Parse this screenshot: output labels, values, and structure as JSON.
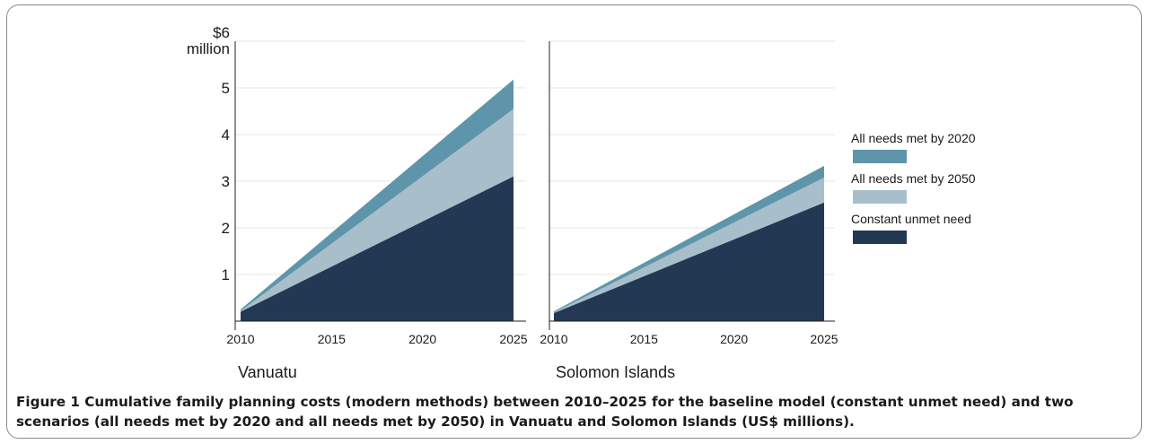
{
  "chart_data": [
    {
      "type": "area",
      "stacked": true,
      "panel_label": "Vanuatu",
      "x": [
        2010,
        2025
      ],
      "x_ticks": [
        2010,
        2015,
        2020,
        2025
      ],
      "x_tick_labels": [
        "2010",
        "2015",
        "2020",
        "2025"
      ],
      "y_ticks": [
        1,
        2,
        3,
        4,
        5,
        6
      ],
      "y_tick_labels": [
        "1",
        "2",
        "3",
        "4",
        "5",
        "$6"
      ],
      "y_unit_label": "million",
      "ylim": [
        0,
        6
      ],
      "series": [
        {
          "name": "Constant unmet need",
          "values": [
            0.2,
            3.1
          ]
        },
        {
          "name": "All needs met by 2050",
          "values": [
            0.22,
            4.55
          ]
        },
        {
          "name": "All needs met by 2020",
          "values": [
            0.25,
            5.18
          ]
        }
      ]
    },
    {
      "type": "area",
      "stacked": true,
      "panel_label": "Solomon Islands",
      "x": [
        2010,
        2025
      ],
      "x_ticks": [
        2010,
        2015,
        2020,
        2025
      ],
      "x_tick_labels": [
        "2010",
        "2015",
        "2020",
        "2025"
      ],
      "ylim": [
        0,
        6
      ],
      "series": [
        {
          "name": "Constant unmet need",
          "values": [
            0.17,
            2.54
          ]
        },
        {
          "name": "All needs met by 2050",
          "values": [
            0.19,
            3.08
          ]
        },
        {
          "name": "All needs met by 2020",
          "values": [
            0.21,
            3.33
          ]
        }
      ]
    }
  ],
  "legend": {
    "position": "right",
    "items": [
      {
        "label": "All needs met by 2020",
        "color": "#5e95aa"
      },
      {
        "label": "All needs met by 2050",
        "color": "#a8bfcb"
      },
      {
        "label": "Constant unmet need",
        "color": "#233852"
      }
    ]
  },
  "colors": {
    "constant": "#233852",
    "met2050": "#a8bfcb",
    "met2020": "#5e95aa",
    "grid": "#e6e6e6",
    "axis": "#222222"
  },
  "caption": {
    "label": "Figure 1",
    "text": " Cumulative family planning costs (modern methods) between 2010–2025 for the baseline model (constant unmet need) and two scenarios (all needs met by 2020 and all needs met by 2050) in Vanuatu and Solomon Islands (US$ millions)."
  }
}
